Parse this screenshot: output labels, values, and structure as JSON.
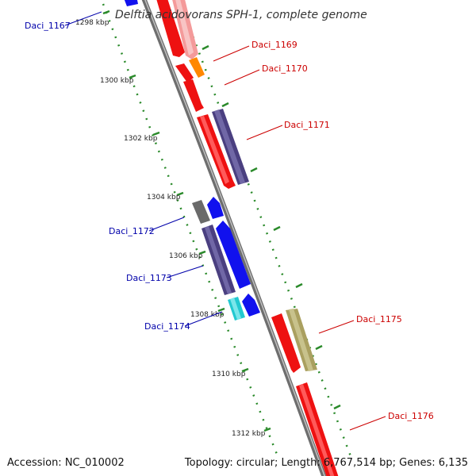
{
  "title": "Delftia acidovorans SPH-1, complete genome",
  "footer": {
    "accession": "Accession: NC_010002",
    "summary": "Topology: circular; Length: 6,767,514 bp; Genes: 6,135"
  },
  "colors": {
    "forward_label": "#cc0000",
    "reverse_label": "#0000aa",
    "backbone": "#8c8c8c",
    "tick": "#2a8a2a"
  },
  "scale_labels": [
    "1298 kbp",
    "1300 kbp",
    "1302 kbp",
    "1304 kbp",
    "1306 kbp",
    "1308 kbp",
    "1310 kbp",
    "1312 kbp"
  ],
  "gene_labels": [
    {
      "text": "Daci_1167",
      "strand": "reverse"
    },
    {
      "text": "Daci_1169",
      "strand": "forward"
    },
    {
      "text": "Daci_1170",
      "strand": "forward"
    },
    {
      "text": "Daci_1171",
      "strand": "forward"
    },
    {
      "text": "Daci_1172",
      "strand": "reverse"
    },
    {
      "text": "Daci_1173",
      "strand": "reverse"
    },
    {
      "text": "Daci_1174",
      "strand": "reverse"
    },
    {
      "text": "Daci_1175",
      "strand": "forward"
    },
    {
      "text": "Daci_1176",
      "strand": "forward"
    }
  ]
}
